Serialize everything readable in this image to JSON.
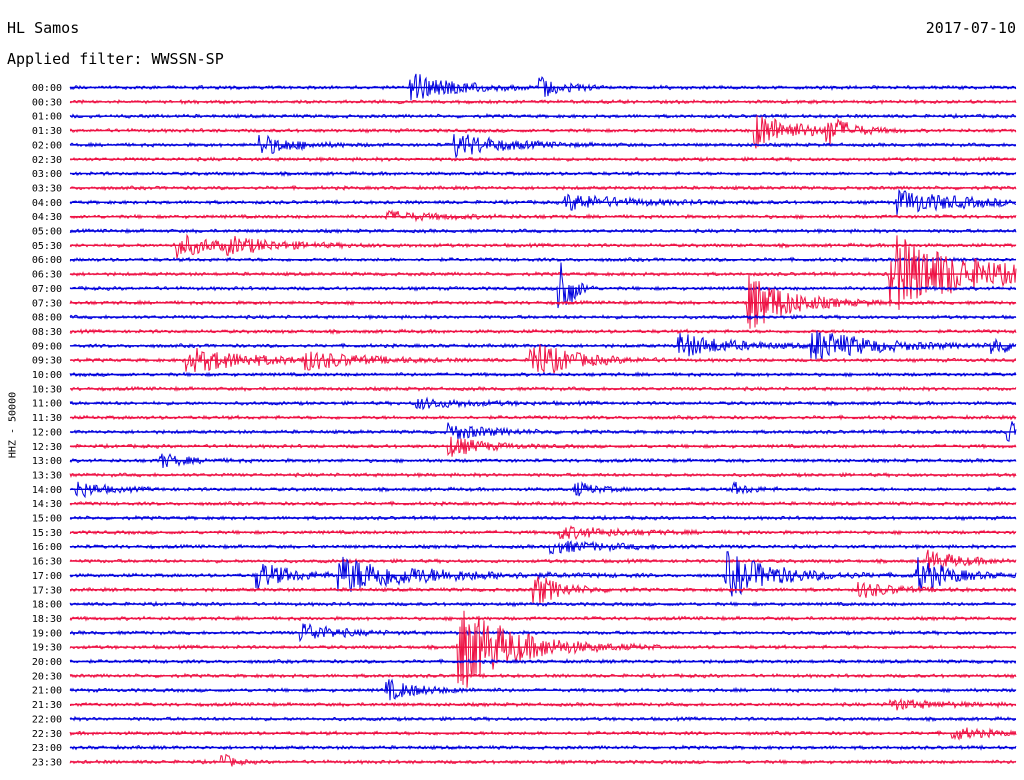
{
  "header": {
    "station": "HL Samos",
    "date": "2017-07-10",
    "filter_label": "Applied filter: WWSSN-SP"
  },
  "chart_data": {
    "type": "line",
    "title": "HL Samos",
    "ylabel": "HHZ - 50000",
    "colors": [
      "#0000dd",
      "#ee1144"
    ],
    "rows": [
      "00:00",
      "00:30",
      "01:00",
      "01:30",
      "02:00",
      "02:30",
      "03:00",
      "03:30",
      "04:00",
      "04:30",
      "05:00",
      "05:30",
      "06:00",
      "06:30",
      "07:00",
      "07:30",
      "08:00",
      "08:30",
      "09:00",
      "09:30",
      "10:00",
      "10:30",
      "11:00",
      "11:30",
      "12:00",
      "12:30",
      "13:00",
      "13:30",
      "14:00",
      "14:30",
      "15:00",
      "15:30",
      "16:00",
      "16:30",
      "17:00",
      "17:30",
      "18:00",
      "18:30",
      "19:00",
      "19:30",
      "20:00",
      "20:30",
      "21:00",
      "21:30",
      "22:00",
      "22:30",
      "23:00",
      "23:30"
    ],
    "x_minutes": [
      0,
      30
    ],
    "events": [
      {
        "row": 0,
        "minute": 10.8,
        "amp": 14,
        "dur": 1.4
      },
      {
        "row": 0,
        "minute": 14.9,
        "amp": 8,
        "dur": 0.8
      },
      {
        "row": 3,
        "minute": 21.7,
        "amp": 18,
        "dur": 1.2
      },
      {
        "row": 3,
        "minute": 24.0,
        "amp": 14,
        "dur": 0.6
      },
      {
        "row": 4,
        "minute": 6.0,
        "amp": 10,
        "dur": 1.0
      },
      {
        "row": 4,
        "minute": 12.2,
        "amp": 12,
        "dur": 1.4
      },
      {
        "row": 8,
        "minute": 15.7,
        "amp": 8,
        "dur": 1.8
      },
      {
        "row": 9,
        "minute": 10.0,
        "amp": 5,
        "dur": 1.5
      },
      {
        "row": 8,
        "minute": 26.2,
        "amp": 12,
        "dur": 2.0
      },
      {
        "row": 11,
        "minute": 3.3,
        "amp": 12,
        "dur": 1.2
      },
      {
        "row": 11,
        "minute": 5.0,
        "amp": 6,
        "dur": 1.8
      },
      {
        "row": 13,
        "minute": 26.0,
        "amp": 40,
        "dur": 2.5
      },
      {
        "row": 14,
        "minute": 15.5,
        "amp": 45,
        "dur": 0.3
      },
      {
        "row": 15,
        "minute": 21.5,
        "amp": 30,
        "dur": 1.2
      },
      {
        "row": 18,
        "minute": 19.3,
        "amp": 12,
        "dur": 1.5
      },
      {
        "row": 18,
        "minute": 23.5,
        "amp": 16,
        "dur": 1.8
      },
      {
        "row": 19,
        "minute": 3.7,
        "amp": 12,
        "dur": 2.0
      },
      {
        "row": 19,
        "minute": 7.4,
        "amp": 8,
        "dur": 1.6
      },
      {
        "row": 19,
        "minute": 14.6,
        "amp": 20,
        "dur": 1.2
      },
      {
        "row": 18,
        "minute": 29.2,
        "amp": 8,
        "dur": 0.8
      },
      {
        "row": 22,
        "minute": 11.0,
        "amp": 5,
        "dur": 1.5
      },
      {
        "row": 24,
        "minute": 12.0,
        "amp": 8,
        "dur": 1.2
      },
      {
        "row": 25,
        "minute": 12.0,
        "amp": 10,
        "dur": 1.0
      },
      {
        "row": 24,
        "minute": 29.7,
        "amp": 14,
        "dur": 0.8
      },
      {
        "row": 26,
        "minute": 2.8,
        "amp": 7,
        "dur": 0.8
      },
      {
        "row": 28,
        "minute": 0.2,
        "amp": 8,
        "dur": 0.8
      },
      {
        "row": 28,
        "minute": 16.0,
        "amp": 7,
        "dur": 0.6
      },
      {
        "row": 28,
        "minute": 21.0,
        "amp": 6,
        "dur": 0.5
      },
      {
        "row": 31,
        "minute": 15.5,
        "amp": 6,
        "dur": 1.8
      },
      {
        "row": 32,
        "minute": 15.2,
        "amp": 6,
        "dur": 1.8
      },
      {
        "row": 34,
        "minute": 5.9,
        "amp": 14,
        "dur": 1.0
      },
      {
        "row": 34,
        "minute": 8.5,
        "amp": 18,
        "dur": 2.5
      },
      {
        "row": 34,
        "minute": 20.8,
        "amp": 22,
        "dur": 1.5
      },
      {
        "row": 34,
        "minute": 26.8,
        "amp": 18,
        "dur": 1.0
      },
      {
        "row": 35,
        "minute": 14.7,
        "amp": 16,
        "dur": 0.8
      },
      {
        "row": 35,
        "minute": 25.0,
        "amp": 8,
        "dur": 1.0
      },
      {
        "row": 33,
        "minute": 27.2,
        "amp": 10,
        "dur": 1.0
      },
      {
        "row": 39,
        "minute": 12.3,
        "amp": 45,
        "dur": 1.6
      },
      {
        "row": 38,
        "minute": 7.3,
        "amp": 10,
        "dur": 1.0
      },
      {
        "row": 42,
        "minute": 10.0,
        "amp": 10,
        "dur": 1.0
      },
      {
        "row": 43,
        "minute": 26.0,
        "amp": 5,
        "dur": 1.5
      },
      {
        "row": 45,
        "minute": 28.0,
        "amp": 6,
        "dur": 1.0
      },
      {
        "row": 47,
        "minute": 4.8,
        "amp": 8,
        "dur": 0.3
      }
    ]
  }
}
